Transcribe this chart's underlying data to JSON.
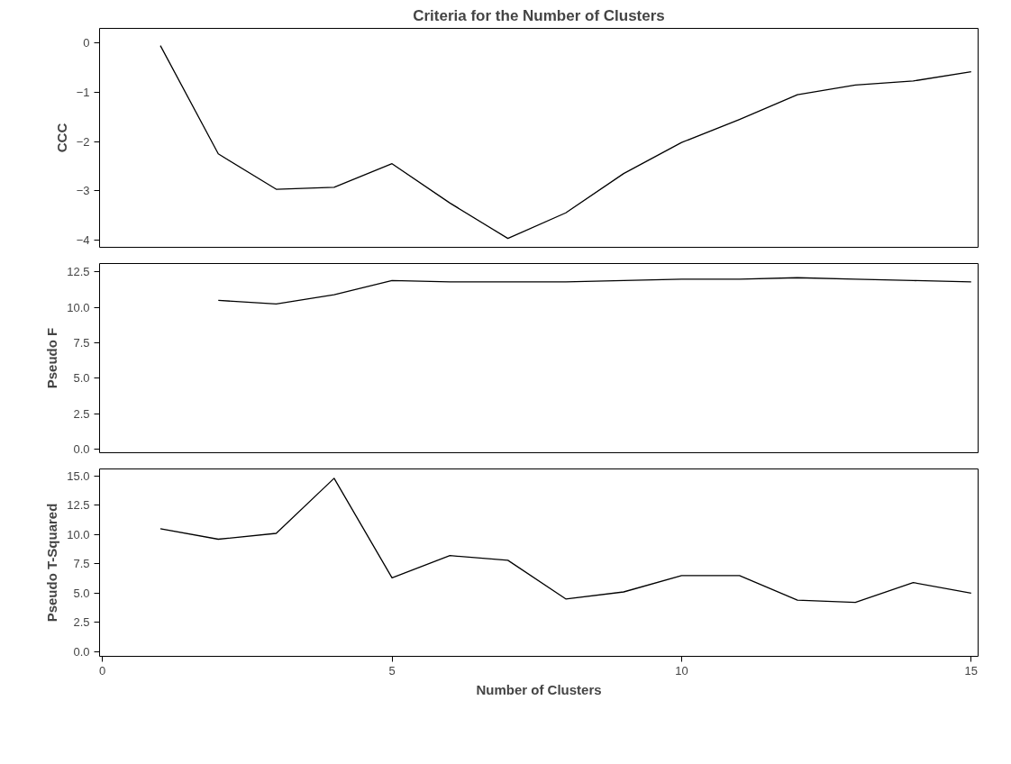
{
  "chart_data": [
    {
      "type": "line",
      "title": "Criteria for the Number of Clusters",
      "ylabel": "CCC",
      "x": [
        1,
        2,
        3,
        4,
        5,
        6,
        7,
        8,
        9,
        10,
        11,
        12,
        13,
        14,
        15
      ],
      "values": [
        -0.05,
        -2.25,
        -2.97,
        -2.93,
        -2.45,
        -3.25,
        -3.97,
        -3.45,
        -2.65,
        -2.02,
        -1.55,
        -1.05,
        -0.85,
        -0.77,
        -0.58
      ],
      "color": "#000000",
      "xlim": [
        -0.05,
        15.12
      ],
      "ylim": [
        -4.15,
        0.3
      ],
      "yticks": [
        0,
        -1,
        -2,
        -3,
        -4
      ],
      "tick_labels": "y",
      "grid": false
    },
    {
      "type": "line",
      "ylabel": "Pseudo F",
      "x": [
        2,
        3,
        4,
        5,
        6,
        7,
        8,
        9,
        10,
        11,
        12,
        13,
        14,
        15
      ],
      "values": [
        10.5,
        10.25,
        10.9,
        11.9,
        11.8,
        11.8,
        11.8,
        11.9,
        12.0,
        12.0,
        12.1,
        12.0,
        11.9,
        11.8
      ],
      "color": "#000000",
      "xlim": [
        -0.05,
        15.12
      ],
      "ylim": [
        -0.25,
        13.1
      ],
      "yticks": [
        {
          "value": 0,
          "label": "0.0"
        },
        {
          "value": 2.5,
          "label": "2.5"
        },
        {
          "value": 5,
          "label": "5.0"
        },
        {
          "value": 7.5,
          "label": "7.5"
        },
        {
          "value": 10,
          "label": "10.0"
        },
        {
          "value": 12.5,
          "label": "12.5"
        }
      ],
      "tick_labels": "y",
      "grid": false
    },
    {
      "type": "line",
      "ylabel": "Pseudo T-Squared",
      "xlabel": "Number of Clusters",
      "x": [
        1,
        2,
        3,
        4,
        5,
        6,
        7,
        8,
        9,
        10,
        11,
        12,
        13,
        14,
        15
      ],
      "values": [
        10.5,
        9.6,
        10.1,
        14.8,
        6.3,
        8.2,
        7.8,
        4.5,
        5.1,
        6.5,
        6.5,
        4.4,
        4.2,
        5.9,
        5.0
      ],
      "color": "#000000",
      "xlim": [
        -0.05,
        15.12
      ],
      "xticks": [
        0,
        5,
        10,
        15
      ],
      "ylim": [
        -0.4,
        15.6
      ],
      "yticks": [
        {
          "value": 0,
          "label": "0.0"
        },
        {
          "value": 2.5,
          "label": "2.5"
        },
        {
          "value": 5,
          "label": "5.0"
        },
        {
          "value": 7.5,
          "label": "7.5"
        },
        {
          "value": 10,
          "label": "10.0"
        },
        {
          "value": 12.5,
          "label": "12.5"
        },
        {
          "value": 15,
          "label": "15.0"
        }
      ],
      "grid": false
    }
  ]
}
